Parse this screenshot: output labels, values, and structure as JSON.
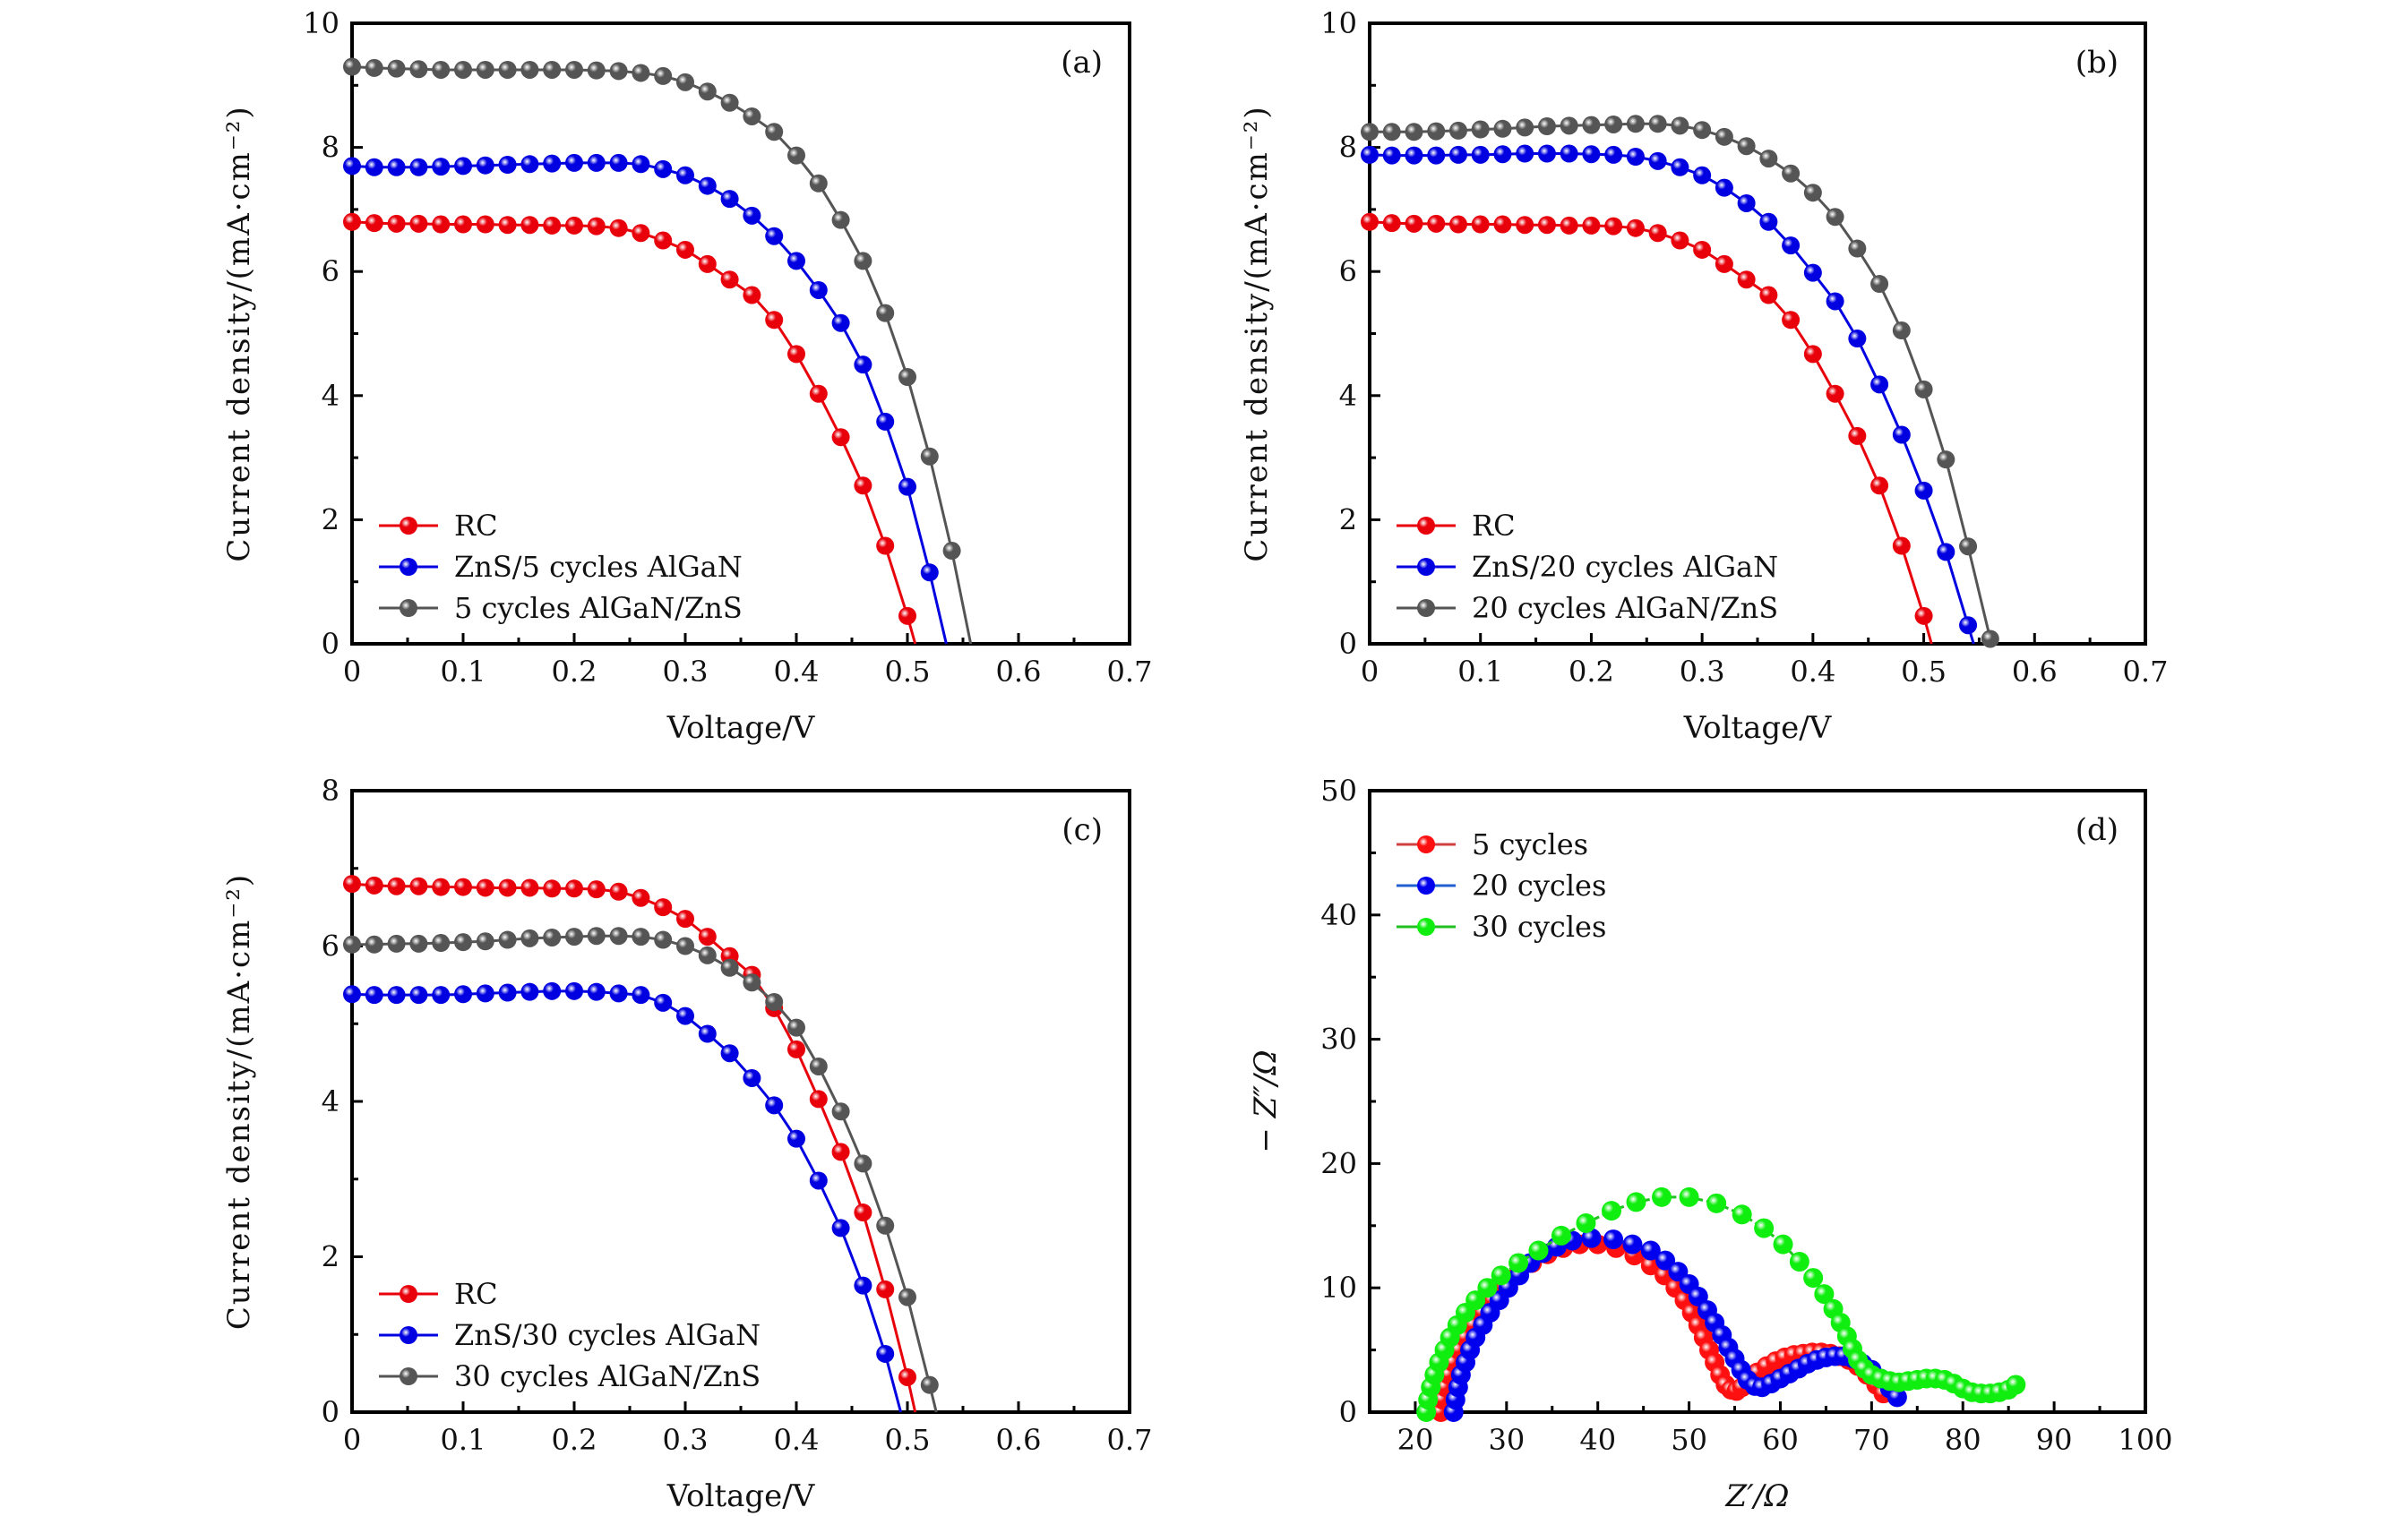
{
  "chart_data": [
    {
      "panel": "(a)",
      "type": "line",
      "xlabel": "Voltage/V",
      "ylabel": "Current density/(mA·cm⁻²)",
      "xlim": [
        0,
        0.7
      ],
      "ylim": [
        0,
        10
      ],
      "xticks": [
        "0",
        "0.1",
        "0.2",
        "0.3",
        "0.4",
        "0.5",
        "0.6",
        "0.7"
      ],
      "yticks": [
        "0",
        "2",
        "4",
        "6",
        "8",
        "10"
      ],
      "xtick_values": [
        0,
        0.1,
        0.2,
        0.3,
        0.4,
        0.5,
        0.6,
        0.7
      ],
      "ytick_values": [
        0,
        2,
        4,
        6,
        8,
        10
      ],
      "legend_position": "bottom-left",
      "marker_style": "sphere",
      "series": [
        {
          "name": "RC",
          "color": "#e8000b",
          "x_start": 0,
          "x_step": 0.02,
          "voc": 0.507,
          "values": [
            6.8,
            6.78,
            6.77,
            6.77,
            6.76,
            6.76,
            6.76,
            6.75,
            6.75,
            6.74,
            6.74,
            6.73,
            6.7,
            6.62,
            6.5,
            6.35,
            6.12,
            5.87,
            5.62,
            5.22,
            4.67,
            4.03,
            3.33,
            2.55,
            1.58,
            0.45
          ]
        },
        {
          "name": "ZnS/5 cycles AlGaN",
          "color": "#0000e0",
          "x_start": 0,
          "x_step": 0.02,
          "voc": 0.535,
          "values": [
            7.7,
            7.68,
            7.68,
            7.68,
            7.69,
            7.7,
            7.71,
            7.72,
            7.73,
            7.74,
            7.75,
            7.75,
            7.75,
            7.73,
            7.65,
            7.55,
            7.38,
            7.17,
            6.9,
            6.57,
            6.17,
            5.7,
            5.17,
            4.5,
            3.58,
            2.53,
            1.15
          ]
        },
        {
          "name": "5 cycles AlGaN/ZnS",
          "color": "#555555",
          "x_start": 0,
          "x_step": 0.02,
          "voc": 0.557,
          "values": [
            9.3,
            9.28,
            9.27,
            9.26,
            9.25,
            9.25,
            9.25,
            9.25,
            9.25,
            9.25,
            9.25,
            9.24,
            9.23,
            9.2,
            9.15,
            9.05,
            8.9,
            8.72,
            8.5,
            8.25,
            7.87,
            7.42,
            6.83,
            6.17,
            5.33,
            4.3,
            3.02,
            1.5
          ]
        }
      ]
    },
    {
      "panel": "(b)",
      "type": "line",
      "xlabel": "Voltage/V",
      "ylabel": "Current density/(mA·cm⁻²)",
      "xlim": [
        0,
        0.7
      ],
      "ylim": [
        0,
        10
      ],
      "xticks": [
        "0",
        "0.1",
        "0.2",
        "0.3",
        "0.4",
        "0.5",
        "0.6",
        "0.7"
      ],
      "yticks": [
        "0",
        "2",
        "4",
        "6",
        "8",
        "10"
      ],
      "xtick_values": [
        0,
        0.1,
        0.2,
        0.3,
        0.4,
        0.5,
        0.6,
        0.7
      ],
      "ytick_values": [
        0,
        2,
        4,
        6,
        8,
        10
      ],
      "legend_position": "bottom-left",
      "marker_style": "sphere",
      "series": [
        {
          "name": "RC",
          "color": "#e8000b",
          "x_start": 0,
          "x_step": 0.02,
          "voc": 0.507,
          "values": [
            6.8,
            6.78,
            6.77,
            6.77,
            6.76,
            6.76,
            6.76,
            6.75,
            6.75,
            6.74,
            6.74,
            6.73,
            6.7,
            6.62,
            6.5,
            6.35,
            6.12,
            5.87,
            5.62,
            5.22,
            4.67,
            4.03,
            3.35,
            2.55,
            1.58,
            0.45
          ]
        },
        {
          "name": "ZnS/20 cycles AlGaN",
          "color": "#0000e0",
          "x_start": 0,
          "x_step": 0.02,
          "voc": 0.545,
          "values": [
            7.88,
            7.87,
            7.87,
            7.87,
            7.88,
            7.88,
            7.89,
            7.9,
            7.9,
            7.9,
            7.89,
            7.88,
            7.85,
            7.78,
            7.68,
            7.55,
            7.35,
            7.1,
            6.8,
            6.42,
            5.98,
            5.52,
            4.92,
            4.18,
            3.37,
            2.47,
            1.48,
            0.3
          ]
        },
        {
          "name": "20 cycles AlGaN/ZnS",
          "color": "#555555",
          "x_start": 0,
          "x_step": 0.02,
          "voc": 0.562,
          "values": [
            8.25,
            8.25,
            8.25,
            8.26,
            8.27,
            8.29,
            8.3,
            8.32,
            8.34,
            8.35,
            8.36,
            8.37,
            8.38,
            8.38,
            8.35,
            8.28,
            8.17,
            8.02,
            7.82,
            7.58,
            7.27,
            6.88,
            6.37,
            5.8,
            5.05,
            4.1,
            2.97,
            1.57,
            0.08
          ]
        }
      ]
    },
    {
      "panel": "(c)",
      "type": "line",
      "xlabel": "Voltage/V",
      "ylabel": "Current density/(mA·cm⁻²)",
      "xlim": [
        0,
        0.7
      ],
      "ylim": [
        0,
        8
      ],
      "xticks": [
        "0",
        "0.1",
        "0.2",
        "0.3",
        "0.4",
        "0.5",
        "0.6",
        "0.7"
      ],
      "yticks": [
        "0",
        "2",
        "4",
        "6",
        "8"
      ],
      "xtick_values": [
        0,
        0.1,
        0.2,
        0.3,
        0.4,
        0.5,
        0.6,
        0.7
      ],
      "ytick_values": [
        0,
        2,
        4,
        6,
        8
      ],
      "legend_position": "bottom-left",
      "marker_style": "sphere",
      "series": [
        {
          "name": "RC",
          "color": "#e8000b",
          "x_start": 0,
          "x_step": 0.02,
          "voc": 0.507,
          "values": [
            6.8,
            6.78,
            6.77,
            6.77,
            6.76,
            6.76,
            6.75,
            6.75,
            6.75,
            6.74,
            6.74,
            6.73,
            6.7,
            6.62,
            6.5,
            6.35,
            6.12,
            5.87,
            5.63,
            5.2,
            4.67,
            4.03,
            3.35,
            2.57,
            1.58,
            0.45
          ]
        },
        {
          "name": "ZnS/30 cycles AlGaN",
          "color": "#0000e0",
          "x_start": 0,
          "x_step": 0.02,
          "voc": 0.494,
          "values": [
            5.38,
            5.37,
            5.37,
            5.37,
            5.37,
            5.38,
            5.39,
            5.4,
            5.41,
            5.42,
            5.42,
            5.41,
            5.39,
            5.37,
            5.27,
            5.1,
            4.87,
            4.62,
            4.3,
            3.95,
            3.52,
            2.98,
            2.37,
            1.63,
            0.75
          ]
        },
        {
          "name": "30 cycles AlGaN/ZnS",
          "color": "#555555",
          "x_start": 0,
          "x_step": 0.02,
          "voc": 0.526,
          "values": [
            6.02,
            6.02,
            6.03,
            6.03,
            6.04,
            6.05,
            6.06,
            6.08,
            6.1,
            6.11,
            6.12,
            6.13,
            6.13,
            6.12,
            6.08,
            6.0,
            5.88,
            5.72,
            5.53,
            5.28,
            4.95,
            4.45,
            3.87,
            3.2,
            2.4,
            1.48,
            0.35
          ]
        }
      ]
    },
    {
      "panel": "(d)",
      "type": "scatter",
      "xlabel": "Z′/Ω",
      "ylabel": "− Z″/Ω",
      "xlim": [
        15,
        100
      ],
      "ylim": [
        0,
        50
      ],
      "xticks": [
        "20",
        "30",
        "40",
        "50",
        "60",
        "70",
        "80",
        "90",
        "100"
      ],
      "yticks": [
        "0",
        "10",
        "20",
        "30",
        "40",
        "50"
      ],
      "xtick_values": [
        20,
        30,
        40,
        50,
        60,
        70,
        80,
        90,
        100
      ],
      "ytick_values": [
        0,
        10,
        20,
        30,
        40,
        50
      ],
      "legend_position": "top-left",
      "marker_style": "sphere",
      "series": [
        {
          "name": "5 cycles",
          "color": "#ff1010",
          "line_color": "#d04040",
          "points": [
            [
              22.8,
              0.0
            ],
            [
              23.0,
              1.0
            ],
            [
              23.3,
              2.0
            ],
            [
              23.7,
              3.0
            ],
            [
              24.2,
              4.0
            ],
            [
              24.8,
              5.0
            ],
            [
              25.5,
              6.0
            ],
            [
              26.4,
              7.0
            ],
            [
              27.4,
              8.0
            ],
            [
              28.5,
              9.0
            ],
            [
              29.8,
              10.0
            ],
            [
              31.2,
              11.0
            ],
            [
              32.8,
              12.0
            ],
            [
              34.5,
              12.7
            ],
            [
              36.2,
              13.2
            ],
            [
              38.0,
              13.5
            ],
            [
              40.0,
              13.5
            ],
            [
              42.0,
              13.2
            ],
            [
              44.0,
              12.6
            ],
            [
              45.8,
              11.8
            ],
            [
              47.3,
              11.0
            ],
            [
              48.5,
              10.0
            ],
            [
              49.5,
              9.0
            ],
            [
              50.3,
              8.0
            ],
            [
              51.0,
              7.0
            ],
            [
              51.6,
              6.0
            ],
            [
              52.2,
              5.0
            ],
            [
              52.8,
              4.0
            ],
            [
              53.4,
              3.0
            ],
            [
              54.0,
              2.2
            ],
            [
              54.6,
              1.8
            ],
            [
              55.2,
              1.7
            ],
            [
              55.8,
              2.0
            ],
            [
              56.5,
              2.6
            ],
            [
              57.5,
              3.2
            ],
            [
              58.5,
              3.7
            ],
            [
              59.5,
              4.1
            ],
            [
              60.5,
              4.4
            ],
            [
              61.5,
              4.6
            ],
            [
              62.5,
              4.7
            ],
            [
              63.5,
              4.8
            ],
            [
              64.5,
              4.8
            ],
            [
              65.5,
              4.7
            ],
            [
              66.5,
              4.5
            ],
            [
              67.5,
              4.2
            ],
            [
              68.5,
              3.7
            ],
            [
              69.5,
              3.0
            ],
            [
              70.5,
              2.2
            ],
            [
              71.3,
              1.5
            ]
          ]
        },
        {
          "name": "20 cycles",
          "color": "#0000ee",
          "line_color": "#2060d0",
          "points": [
            [
              24.2,
              0.0
            ],
            [
              24.4,
              1.0
            ],
            [
              24.7,
              2.0
            ],
            [
              25.0,
              3.0
            ],
            [
              25.5,
              4.0
            ],
            [
              26.0,
              5.0
            ],
            [
              26.6,
              6.0
            ],
            [
              27.4,
              7.0
            ],
            [
              28.2,
              8.0
            ],
            [
              29.2,
              9.0
            ],
            [
              30.2,
              10.0
            ],
            [
              31.4,
              11.0
            ],
            [
              32.6,
              12.0
            ],
            [
              34.0,
              12.8
            ],
            [
              35.5,
              13.3
            ],
            [
              37.2,
              13.8
            ],
            [
              39.3,
              14.0
            ],
            [
              41.7,
              13.9
            ],
            [
              43.8,
              13.5
            ],
            [
              45.8,
              13.0
            ],
            [
              47.4,
              12.2
            ],
            [
              48.8,
              11.3
            ],
            [
              50.0,
              10.3
            ],
            [
              51.0,
              9.3
            ],
            [
              52.0,
              8.2
            ],
            [
              52.8,
              7.2
            ],
            [
              53.6,
              6.2
            ],
            [
              54.3,
              5.2
            ],
            [
              55.0,
              4.3
            ],
            [
              55.7,
              3.4
            ],
            [
              56.4,
              2.6
            ],
            [
              57.2,
              2.1
            ],
            [
              58.0,
              2.0
            ],
            [
              59.0,
              2.3
            ],
            [
              60.0,
              2.7
            ],
            [
              61.0,
              3.1
            ],
            [
              62.0,
              3.5
            ],
            [
              63.0,
              3.9
            ],
            [
              64.0,
              4.2
            ],
            [
              65.0,
              4.4
            ],
            [
              66.0,
              4.5
            ],
            [
              67.0,
              4.5
            ],
            [
              68.0,
              4.3
            ],
            [
              69.0,
              3.9
            ],
            [
              70.0,
              3.4
            ],
            [
              71.0,
              2.7
            ],
            [
              72.0,
              1.9
            ],
            [
              72.8,
              1.2
            ]
          ]
        },
        {
          "name": "30 cycles",
          "color": "#10ee10",
          "line_color": "#20c020",
          "points": [
            [
              21.2,
              0.0
            ],
            [
              21.4,
              1.0
            ],
            [
              21.7,
              2.0
            ],
            [
              22.1,
              3.0
            ],
            [
              22.6,
              4.0
            ],
            [
              23.2,
              5.0
            ],
            [
              23.8,
              6.0
            ],
            [
              24.6,
              7.0
            ],
            [
              25.5,
              8.0
            ],
            [
              26.6,
              9.0
            ],
            [
              27.9,
              10.0
            ],
            [
              29.4,
              11.0
            ],
            [
              31.3,
              12.0
            ],
            [
              33.5,
              13.0
            ],
            [
              36.0,
              14.2
            ],
            [
              38.7,
              15.2
            ],
            [
              41.5,
              16.2
            ],
            [
              44.2,
              16.9
            ],
            [
              47.0,
              17.3
            ],
            [
              50.0,
              17.3
            ],
            [
              53.0,
              16.8
            ],
            [
              55.8,
              15.9
            ],
            [
              58.2,
              14.8
            ],
            [
              60.3,
              13.5
            ],
            [
              62.1,
              12.1
            ],
            [
              63.6,
              10.8
            ],
            [
              64.8,
              9.5
            ],
            [
              65.8,
              8.3
            ],
            [
              66.6,
              7.2
            ],
            [
              67.3,
              6.1
            ],
            [
              67.9,
              5.1
            ],
            [
              68.5,
              4.2
            ],
            [
              69.2,
              3.5
            ],
            [
              70.0,
              3.0
            ],
            [
              71.0,
              2.7
            ],
            [
              72.0,
              2.5
            ],
            [
              73.0,
              2.4
            ],
            [
              74.0,
              2.5
            ],
            [
              75.0,
              2.6
            ],
            [
              76.0,
              2.7
            ],
            [
              77.0,
              2.7
            ],
            [
              78.0,
              2.6
            ],
            [
              79.0,
              2.3
            ],
            [
              80.0,
              1.9
            ],
            [
              81.0,
              1.6
            ],
            [
              82.0,
              1.5
            ],
            [
              83.0,
              1.5
            ],
            [
              84.0,
              1.6
            ],
            [
              85.0,
              1.8
            ],
            [
              85.8,
              2.2
            ]
          ]
        }
      ]
    }
  ]
}
